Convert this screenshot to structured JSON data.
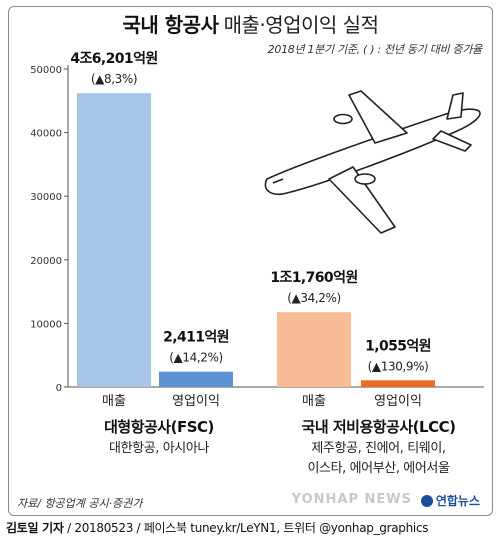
{
  "title_bold": "국내 항공사",
  "title_light": "매출·영업이익 실적",
  "note": "2018년 1분기 기준, ( ) : 전년 동기 대비 증가율",
  "chart_data": {
    "type": "bar",
    "categories": [
      "매출",
      "영업이익",
      "매출",
      "영업이익"
    ],
    "values": [
      46201,
      2411,
      11760,
      1055
    ],
    "value_labels": [
      "4조6,201억원",
      "2,411억원",
      "1조1,760억원",
      "1,055억원"
    ],
    "growth_labels": [
      "(▲8,3%)",
      "(▲14,2%)",
      "(▲34,2%)",
      "(▲130,9%)"
    ],
    "bar_colors": [
      "#a7c5e8",
      "#5b92d1",
      "#f9bb95",
      "#ef6a22"
    ],
    "ylim": [
      0,
      50000
    ],
    "yticks": [
      0,
      10000,
      20000,
      30000,
      40000,
      50000
    ],
    "xlabel": "",
    "ylabel": "",
    "grid": false
  },
  "groups": [
    {
      "name": "대형항공사(FSC)",
      "members": [
        "대한항공, 아시아나"
      ]
    },
    {
      "name": "국내 저비용항공사(LCC)",
      "members": [
        "제주항공, 진에어, 티웨이,",
        "이스타, 에어부산, 에어서울"
      ]
    }
  ],
  "source": "자료/ 항공업계 공시·증권가",
  "watermark": "YONHAP NEWS",
  "logo_text": "연합뉴스",
  "credit_name": "김토일 기자",
  "credit_rest": " / 20180523 / 페이스북 tuney.kr/LeYN1, 트위터 @yonhap_graphics",
  "icons": [
    "airplane-icon",
    "yonhap-logo-icon"
  ]
}
